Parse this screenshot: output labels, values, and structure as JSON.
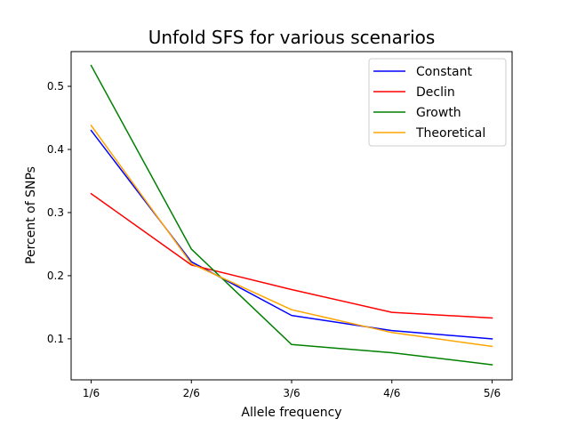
{
  "chart_data": {
    "type": "line",
    "title": "Unfold SFS for various scenarios",
    "xlabel": "Allele frequency",
    "ylabel": "Percent of SNPs",
    "categories": [
      "1/6",
      "2/6",
      "3/6",
      "4/6",
      "5/6"
    ],
    "ylim": [
      0.035,
      0.555
    ],
    "yticks": [
      0.1,
      0.2,
      0.3,
      0.4,
      0.5
    ],
    "ytick_labels": [
      "0.1",
      "0.2",
      "0.3",
      "0.4",
      "0.5"
    ],
    "grid": false,
    "legend_position": "top-right",
    "series": [
      {
        "name": "Constant",
        "color": "#0000ff",
        "values": [
          0.43,
          0.222,
          0.137,
          0.113,
          0.1
        ]
      },
      {
        "name": "Declin",
        "color": "#ff0000",
        "values": [
          0.33,
          0.217,
          0.178,
          0.142,
          0.133
        ]
      },
      {
        "name": "Growth",
        "color": "#008000",
        "values": [
          0.533,
          0.242,
          0.091,
          0.078,
          0.059
        ]
      },
      {
        "name": "Theoretical",
        "color": "#ffa500",
        "values": [
          0.438,
          0.219,
          0.146,
          0.11,
          0.088
        ]
      }
    ]
  }
}
